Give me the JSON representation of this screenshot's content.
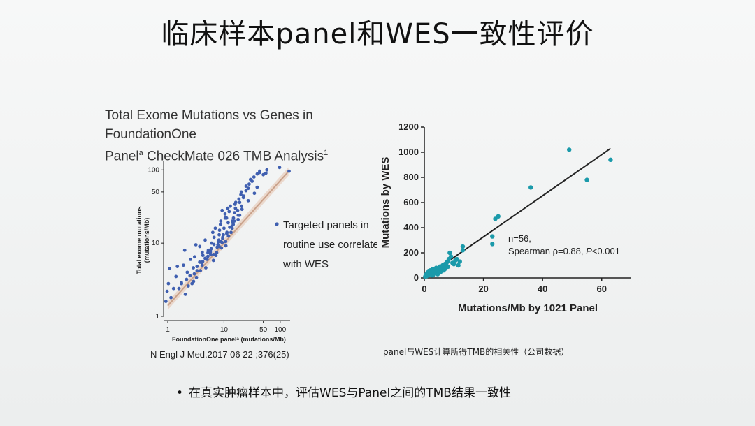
{
  "slide": {
    "title": "临床样本panel和WES一致性评价",
    "bullet": "在真实肿瘤样本中，评估WES与Panel之间的TMB结果一致性",
    "bullet_marker": "•"
  },
  "left": {
    "title_line1": "Total Exome Mutations vs Genes in FoundationOne",
    "title_line2_a": "Panel",
    "title_line2_sup": "a",
    "title_line2_b": " CheckMate 026 TMB Analysis",
    "title_line2_sup2": "1",
    "citation": "N Engl J Med.2017 06 22 ;376(25)"
  },
  "right": {
    "caption": "panel与WES计算所得TMB的相关性（公司数据）"
  },
  "chart_data": [
    {
      "type": "scatter",
      "title": "",
      "xlabel": "FoundationOne panelᵃ (mutations/Mb)",
      "ylabel_line1": "Total exome mutations",
      "ylabel_line2": "(mutations/Mb)",
      "x_scale": "log",
      "y_scale": "log",
      "xlim": [
        1,
        150
      ],
      "ylim": [
        1,
        120
      ],
      "xticks": [
        1,
        10,
        50,
        100
      ],
      "yticks": [
        1,
        10,
        50,
        100
      ],
      "point_color": "#3f5fb0",
      "fit_line_color": "#c9a18a",
      "grid": false,
      "legend": {
        "label_lines": [
          "Targeted panels in",
          "routine use correlate",
          "with WES"
        ],
        "position": "right"
      },
      "fit_line": {
        "x": [
          1,
          140
        ],
        "y": [
          1.4,
          95
        ]
      },
      "series": [
        {
          "x": [
            1,
            1,
            1,
            1,
            1.2,
            1.4,
            1.5,
            1.6,
            1.8,
            2,
            2,
            2,
            2,
            2.2,
            2.4,
            2.6,
            2.8,
            3,
            3,
            3,
            3,
            3.2,
            3.4,
            3.6,
            3.8,
            4,
            4,
            4,
            4,
            4.2,
            4.5,
            4.8,
            5,
            5,
            5,
            5,
            5.3,
            5.6,
            6,
            6,
            6,
            6,
            6.4,
            6.8,
            7,
            7,
            7,
            7,
            7.5,
            8,
            8,
            8,
            8,
            8.5,
            9,
            9,
            9,
            9,
            9.5,
            10,
            10,
            10,
            10,
            10,
            11,
            11,
            11,
            11,
            12,
            12,
            12,
            12,
            13,
            13,
            13,
            14,
            14,
            14,
            15,
            15,
            15,
            16,
            16,
            17,
            17,
            18,
            18,
            19,
            20,
            20,
            21,
            22,
            23,
            24,
            25,
            26,
            28,
            30,
            32,
            35,
            38,
            40,
            45,
            50,
            55,
            60,
            100,
            140,
            2.5,
            3.5,
            6.5,
            7.8,
            9.5,
            11.5,
            13.5,
            16.5,
            22,
            27,
            33,
            42,
            1.3,
            1.7,
            2.3,
            4.4,
            5.8,
            8.8,
            15.5,
            19.5
          ],
          "y": [
            1.6,
            2.2,
            2.8,
            4.5,
            1.8,
            3.5,
            2.4,
            4.8,
            2.8,
            2,
            3.2,
            5,
            8,
            2.6,
            4,
            6,
            3,
            3.4,
            4.6,
            6.5,
            9.5,
            3.8,
            4.8,
            5.5,
            7.5,
            4.2,
            5.4,
            6.8,
            9,
            5,
            6.2,
            7.4,
            4.6,
            6,
            8,
            11,
            6.6,
            7.8,
            5.8,
            7.5,
            10,
            14,
            8.4,
            9.6,
            6.8,
            8.8,
            12,
            16,
            10.4,
            7.4,
            9.5,
            13,
            18,
            11,
            8.6,
            11.5,
            15,
            20,
            13,
            9.2,
            12,
            16,
            22,
            28,
            10.5,
            14,
            19,
            25,
            12.5,
            16.5,
            22,
            30,
            14,
            20,
            27,
            16,
            22,
            32,
            18,
            26,
            36,
            20,
            30,
            24,
            34,
            28,
            40,
            32,
            36,
            46,
            42,
            50,
            44,
            52,
            56,
            60,
            64,
            70,
            74,
            80,
            88,
            96,
            92,
            86,
            100,
            90,
            108,
            96,
            2.8,
            4.2,
            7,
            9,
            10.5,
            13.5,
            17,
            21,
            29,
            38,
            48,
            58,
            2.4,
            2.9,
            3.6,
            5.6,
            7,
            10.2,
            19,
            24
          ]
        }
      ]
    },
    {
      "type": "scatter",
      "title": "",
      "xlabel": "Mutations/Mb by 1021 Panel",
      "ylabel": "Mutations by WES",
      "xlim": [
        0,
        70
      ],
      "ylim": [
        0,
        1200
      ],
      "xticks": [
        0,
        20,
        40,
        60
      ],
      "yticks": [
        0,
        200,
        400,
        600,
        800,
        1000,
        1200
      ],
      "point_color": "#1b9aaa",
      "fit_line_color": "#222222",
      "grid": false,
      "annotation_n": "n=56,",
      "annotation_stat": "Spearman ρ=0.88, ",
      "annotation_p_label": "P",
      "annotation_p_value": "<0.001",
      "fit_line": {
        "x": [
          0,
          63
        ],
        "y": [
          0,
          1030
        ]
      },
      "series": [
        {
          "x": [
            0.3,
            0.5,
            0.8,
            1,
            1.2,
            1.5,
            1.8,
            2,
            2.2,
            2.5,
            2.8,
            3,
            3.2,
            3.5,
            3.8,
            4,
            4.2,
            4.5,
            4.8,
            5,
            5.2,
            5.5,
            5.8,
            6,
            6.2,
            6.5,
            6.8,
            7,
            7.2,
            7.5,
            7.8,
            8,
            8.3,
            8.6,
            9,
            9.5,
            10,
            10.5,
            11,
            11.5,
            12,
            13,
            13,
            23,
            23,
            24,
            25,
            36,
            49,
            55,
            63,
            1.1,
            2.6,
            3.6,
            5.4,
            6.9
          ],
          "y": [
            10,
            25,
            15,
            40,
            20,
            55,
            30,
            60,
            35,
            45,
            70,
            25,
            50,
            65,
            40,
            80,
            55,
            30,
            60,
            75,
            90,
            50,
            85,
            70,
            100,
            60,
            95,
            110,
            80,
            120,
            130,
            90,
            150,
            200,
            170,
            120,
            110,
            140,
            150,
            100,
            130,
            250,
            220,
            330,
            270,
            470,
            490,
            720,
            1020,
            780,
            940,
            30,
            20,
            55,
            45,
            70
          ]
        }
      ]
    }
  ]
}
